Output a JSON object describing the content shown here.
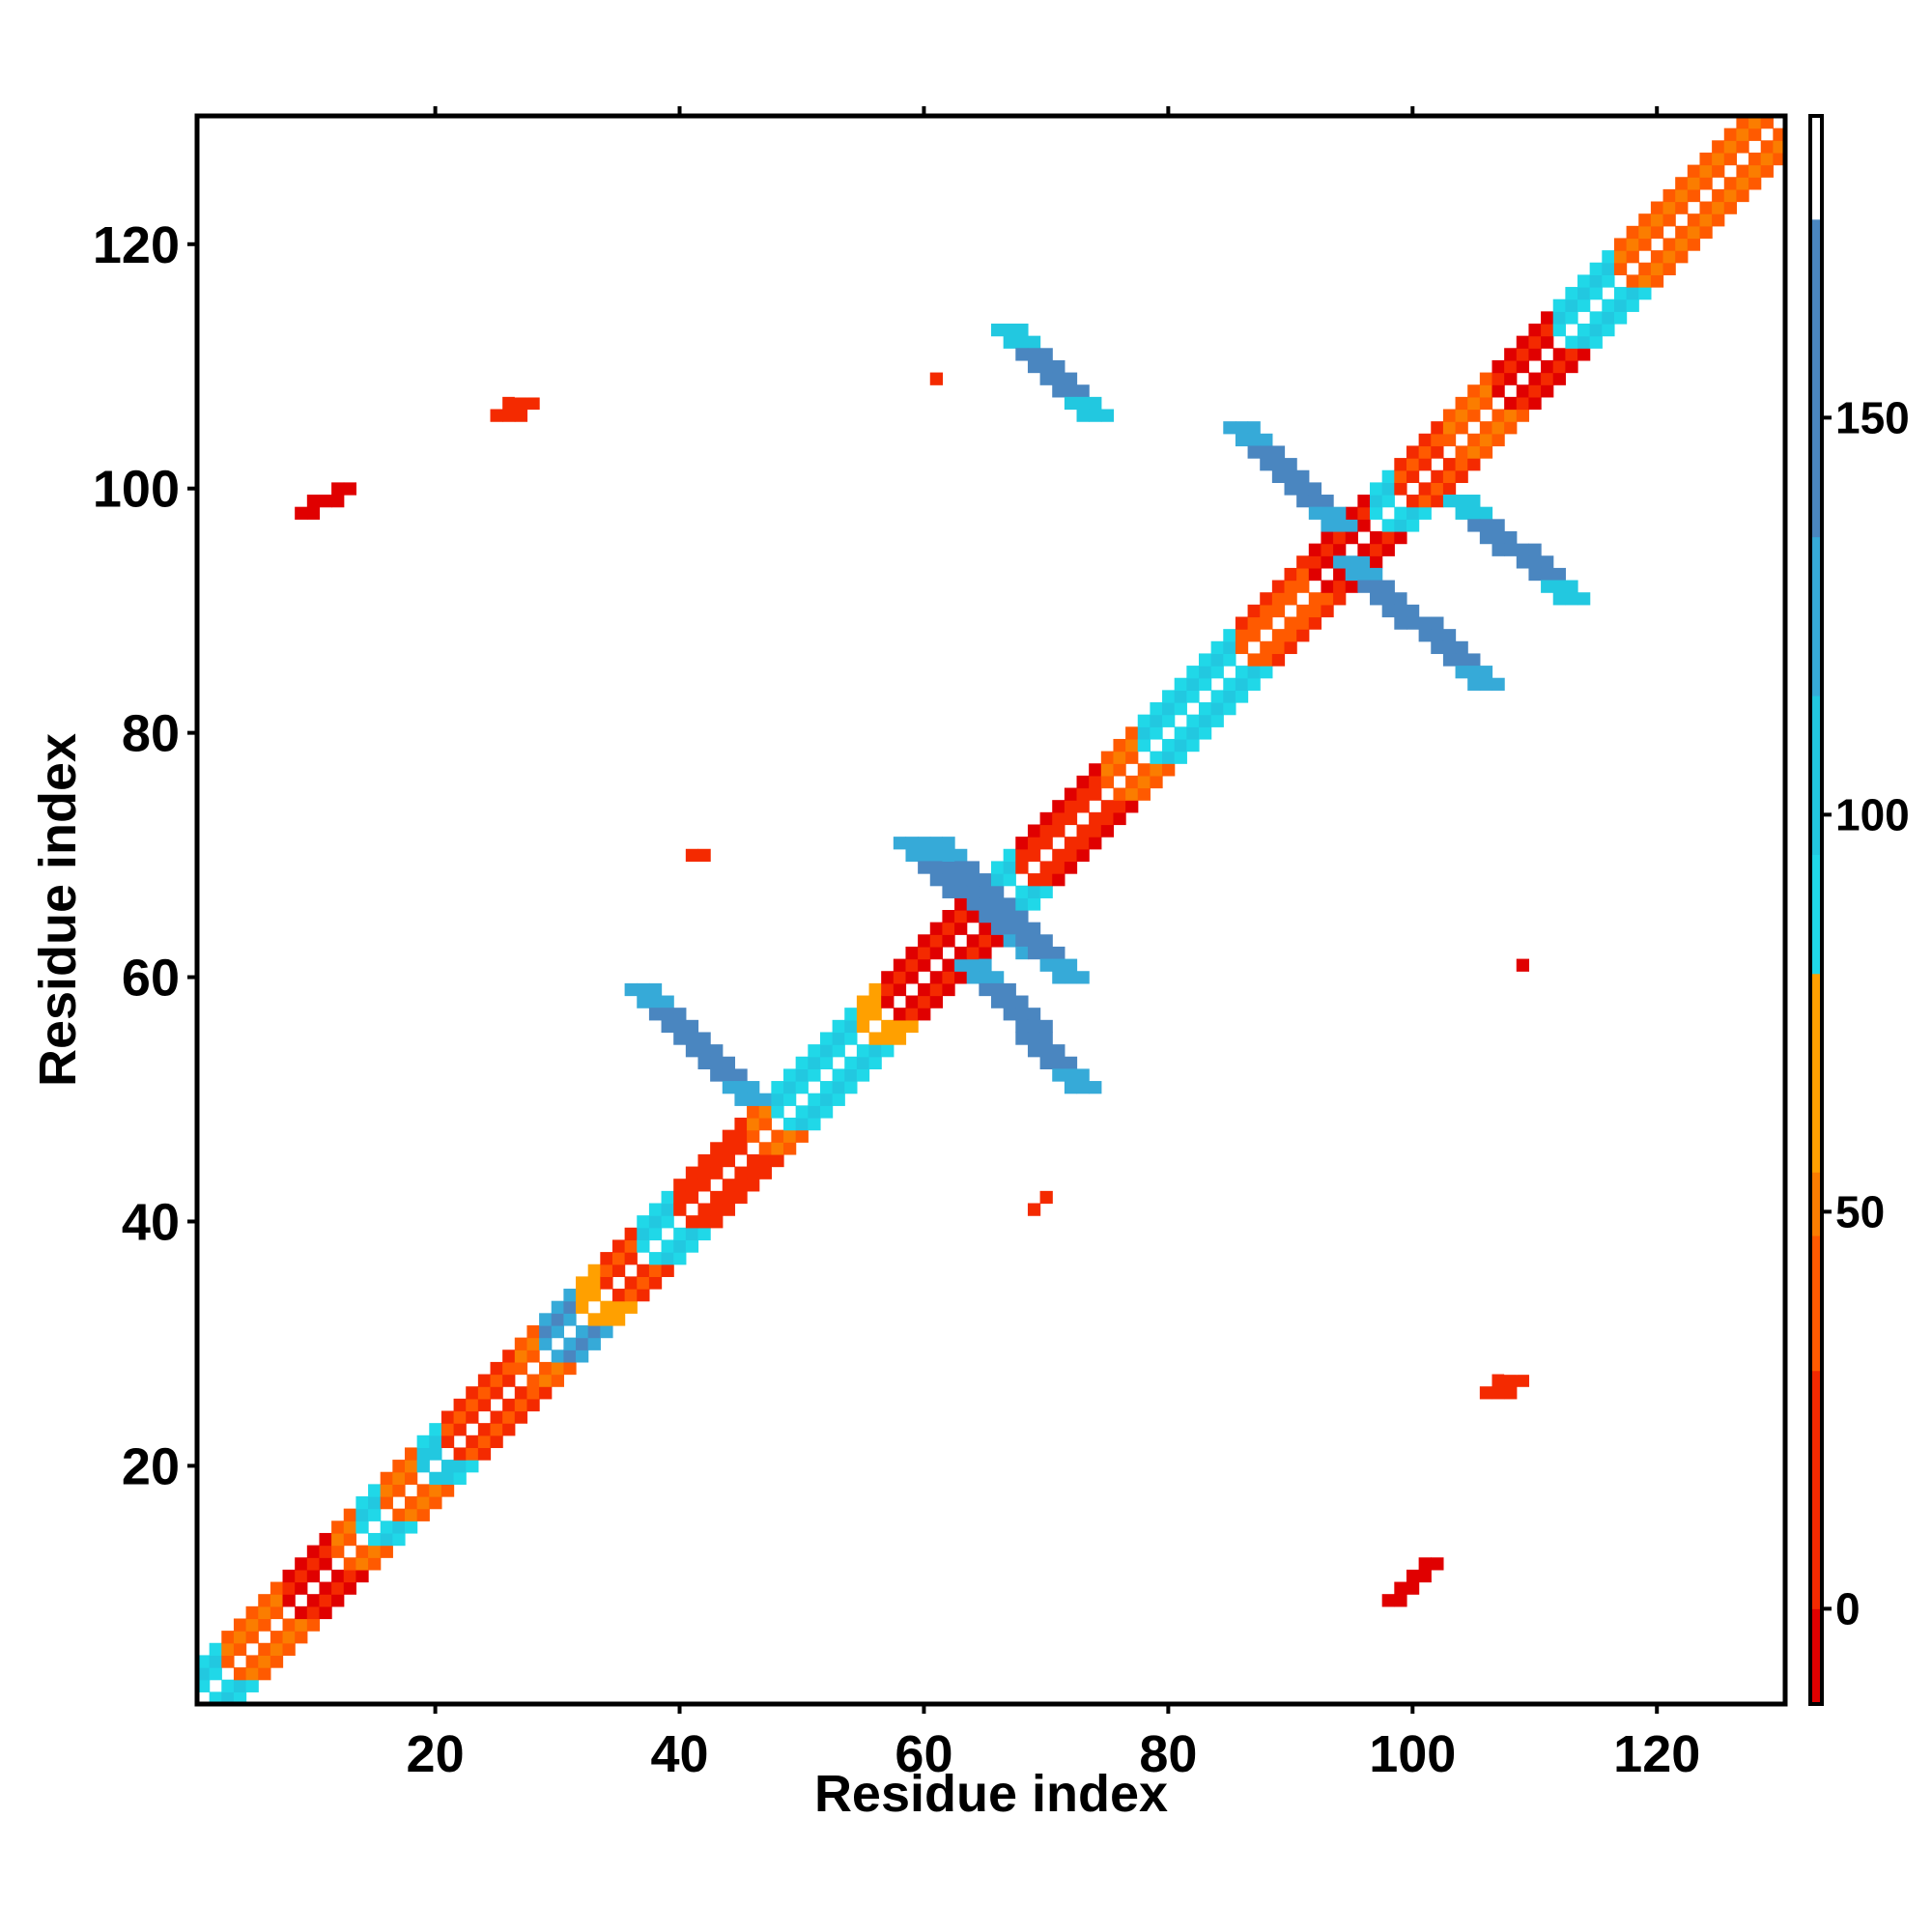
{
  "chart_data": {
    "type": "heatmap",
    "title": "",
    "xlabel": "Residue index",
    "ylabel": "Residue index",
    "xlim": [
      1,
      130
    ],
    "ylim": [
      1,
      130
    ],
    "x_ticks": [
      20,
      40,
      60,
      80,
      100,
      120
    ],
    "y_ticks": [
      20,
      40,
      60,
      80,
      100,
      120
    ],
    "colorbar": {
      "range": [
        -12,
        188
      ],
      "ticks": [
        0,
        50,
        100,
        150
      ],
      "bands": [
        {
          "from": -12,
          "to": 0,
          "color": "#e00000"
        },
        {
          "from": 0,
          "to": 30,
          "color": "#f42a00"
        },
        {
          "from": 30,
          "to": 47,
          "color": "#ff5a00"
        },
        {
          "from": 47,
          "to": 55,
          "color": "#fb7d00"
        },
        {
          "from": 55,
          "to": 80,
          "color": "#ffa000"
        },
        {
          "from": 80,
          "to": 95,
          "color": "#20d8e8"
        },
        {
          "from": 95,
          "to": 115,
          "color": "#22c8e0"
        },
        {
          "from": 115,
          "to": 135,
          "color": "#36aad8"
        },
        {
          "from": 135,
          "to": 175,
          "color": "#4a86c0"
        },
        {
          "from": 175,
          "to": 188,
          "color": "#ffffff"
        }
      ]
    },
    "diagonal_bands": [
      {
        "from": 1,
        "to": 3,
        "value": 90
      },
      {
        "from": 3,
        "to": 8,
        "value": 40
      },
      {
        "from": 8,
        "to": 12,
        "value": -5
      },
      {
        "from": 12,
        "to": 14,
        "value": 40
      },
      {
        "from": 14,
        "to": 16,
        "value": 90
      },
      {
        "from": 16,
        "to": 19,
        "value": 40
      },
      {
        "from": 19,
        "to": 21,
        "value": 95
      },
      {
        "from": 21,
        "to": 27,
        "value": 20
      },
      {
        "from": 27,
        "to": 29,
        "value": 40
      },
      {
        "from": 29,
        "to": 32,
        "value": 130
      },
      {
        "from": 32,
        "to": 34,
        "value": 60
      },
      {
        "from": 34,
        "to": 37,
        "value": 20
      },
      {
        "from": 37,
        "to": 40,
        "value": 90
      },
      {
        "from": 40,
        "to": 46,
        "value": 10
      },
      {
        "from": 46,
        "to": 48,
        "value": 40
      },
      {
        "from": 48,
        "to": 55,
        "value": 90
      },
      {
        "from": 55,
        "to": 57,
        "value": 60
      },
      {
        "from": 57,
        "to": 65,
        "value": -5
      },
      {
        "from": 65,
        "to": 68,
        "value": 90
      },
      {
        "from": 68,
        "to": 75,
        "value": 0
      },
      {
        "from": 75,
        "to": 78,
        "value": 40
      },
      {
        "from": 78,
        "to": 86,
        "value": 90
      },
      {
        "from": 86,
        "to": 92,
        "value": 30
      },
      {
        "from": 92,
        "to": 97,
        "value": -5
      },
      {
        "from": 97,
        "to": 99,
        "value": 90
      },
      {
        "from": 99,
        "to": 103,
        "value": 20
      },
      {
        "from": 103,
        "to": 107,
        "value": 40
      },
      {
        "from": 107,
        "to": 112,
        "value": -5
      },
      {
        "from": 112,
        "to": 117,
        "value": 90
      },
      {
        "from": 117,
        "to": 130,
        "value": 40
      }
    ],
    "contact_clusters": [
      {
        "start": [
          37,
          59
        ],
        "end": [
          46,
          50
        ],
        "width": 3,
        "value": 150
      },
      {
        "start": [
          59,
          71
        ],
        "end": [
          69,
          62
        ],
        "width": 3,
        "value": 150
      },
      {
        "start": [
          61,
          71
        ],
        "end": [
          72,
          60
        ],
        "width": 3,
        "value": 150
      },
      {
        "start": [
          64,
          61
        ],
        "end": [
          73,
          51
        ],
        "width": 3,
        "value": 150
      },
      {
        "start": [
          67,
          113
        ],
        "end": [
          74,
          106
        ],
        "width": 3,
        "value": 140
      },
      {
        "start": [
          86,
          105
        ],
        "end": [
          94,
          97
        ],
        "width": 3,
        "value": 150
      },
      {
        "start": [
          95,
          94
        ],
        "end": [
          106,
          84
        ],
        "width": 3,
        "value": 150
      },
      {
        "start": [
          104,
          99
        ],
        "end": [
          113,
          91
        ],
        "width": 3,
        "value": 140
      },
      {
        "start": [
          24,
          104
        ],
        "end": [
          29,
          109
        ],
        "width": 3,
        "value": 20
      },
      {
        "start": [
          9,
          98
        ],
        "end": [
          12,
          100
        ],
        "width": 2,
        "value": 30
      },
      {
        "start": [
          105,
          24
        ],
        "end": [
          110,
          29
        ],
        "width": 3,
        "value": 20
      },
      {
        "start": [
          98,
          9
        ],
        "end": [
          101,
          12
        ],
        "width": 2,
        "value": 30
      },
      {
        "start": [
          41,
          70
        ],
        "end": [
          42,
          70
        ],
        "width": 1,
        "value": 40
      },
      {
        "start": [
          69,
          41
        ],
        "end": [
          70,
          42
        ],
        "width": 1,
        "value": 40
      },
      {
        "start": [
          61,
          109
        ],
        "end": [
          61,
          109
        ],
        "width": 1,
        "value": 40
      },
      {
        "start": [
          109,
          61
        ],
        "end": [
          109,
          61
        ],
        "width": 1,
        "value": 30
      }
    ]
  }
}
